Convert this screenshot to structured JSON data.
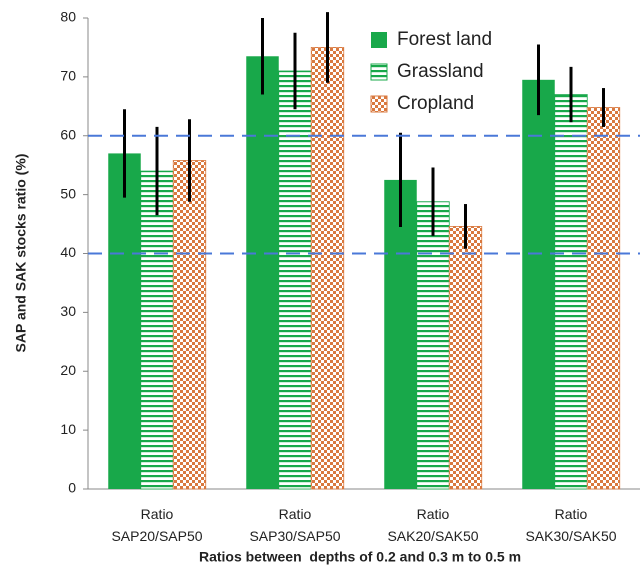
{
  "chart_data": {
    "type": "bar",
    "x_label": "Ratios between  depths of 0.2 and 0.3 m to 0.5 m",
    "y_label": "SAP and SAK stocks ratio (%)",
    "categories": [
      "Ratio SAP20/SAP50",
      "Ratio SAP30/SAP50",
      "Ratio SAK20/SAK50",
      "Ratio SAK30/SAK50"
    ],
    "series": [
      {
        "name": "Forest land",
        "color": "#18a84a",
        "pattern": "solid",
        "values": [
          57,
          73.5,
          52.5,
          69.5
        ],
        "errors": [
          7.5,
          6.5,
          8,
          6
        ]
      },
      {
        "name": "Grassland",
        "color": "#18a84a",
        "pattern": "stripes",
        "values": [
          54,
          71,
          48.8,
          67
        ],
        "errors": [
          7.5,
          6.5,
          5.8,
          4.7
        ]
      },
      {
        "name": "Cropland",
        "color": "#d9793f",
        "pattern": "checker",
        "values": [
          55.8,
          75,
          44.6,
          64.8
        ],
        "errors": [
          7,
          6,
          3.8,
          3.3
        ]
      }
    ],
    "reference_lines": [
      40,
      60
    ],
    "reference_color": "#4a78d8",
    "ylim": [
      0,
      80
    ],
    "yticks": [
      0,
      10,
      20,
      30,
      40,
      50,
      60,
      70,
      80
    ],
    "legend": "top-right"
  }
}
